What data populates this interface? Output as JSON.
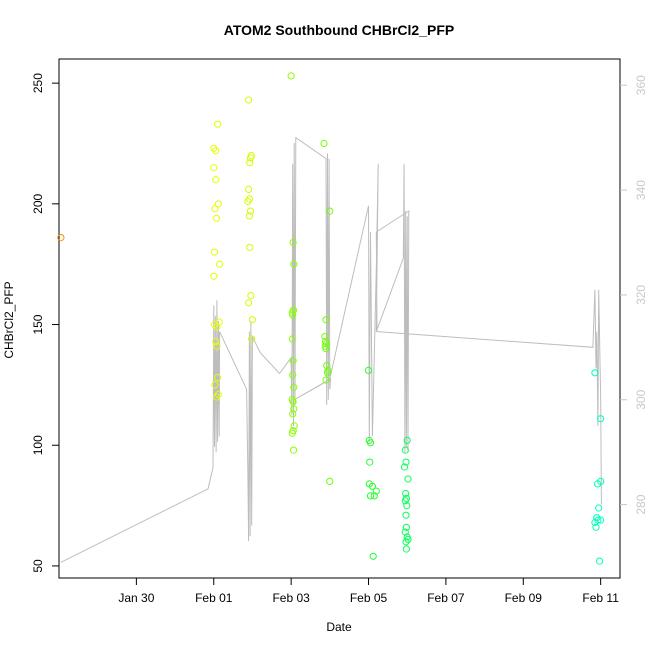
{
  "chart_data": {
    "type": "scatter",
    "title": "ATOM2 Southbound CHBrCl2_PFP",
    "xlabel": "Date",
    "ylabel": "CHBrCl2_PFP",
    "x_unit": "days since Jan 29 00:00",
    "xlim": [
      -1.0,
      13.5
    ],
    "ylim": [
      45,
      260
    ],
    "x_ticks": [
      {
        "value": 1,
        "label": "Jan 30"
      },
      {
        "value": 3,
        "label": "Feb 01"
      },
      {
        "value": 5,
        "label": "Feb 03"
      },
      {
        "value": 7,
        "label": "Feb 05"
      },
      {
        "value": 9,
        "label": "Feb 07"
      },
      {
        "value": 11,
        "label": "Feb 09"
      },
      {
        "value": 13,
        "label": "Feb 11"
      }
    ],
    "y_ticks": [
      50,
      100,
      150,
      200,
      250
    ],
    "y2_ticks": [
      280,
      300,
      320,
      340,
      360
    ],
    "y2lim": [
      266,
      365
    ],
    "line_color": "#bdbdbd",
    "axis_color": "#000000",
    "y2_color": "#c8c8c8",
    "points": [
      {
        "x": -0.95,
        "y": 186,
        "color": "#ff8c00"
      },
      {
        "x": 3.0,
        "y": 170
      },
      {
        "x": 3.02,
        "y": 180
      },
      {
        "x": 3.0,
        "y": 223
      },
      {
        "x": 3.05,
        "y": 222
      },
      {
        "x": 3.0,
        "y": 215
      },
      {
        "x": 3.05,
        "y": 210
      },
      {
        "x": 3.1,
        "y": 233
      },
      {
        "x": 3.03,
        "y": 198
      },
      {
        "x": 3.12,
        "y": 200
      },
      {
        "x": 3.07,
        "y": 194
      },
      {
        "x": 3.15,
        "y": 175
      },
      {
        "x": 3.02,
        "y": 150
      },
      {
        "x": 3.08,
        "y": 149
      },
      {
        "x": 3.14,
        "y": 151
      },
      {
        "x": 3.05,
        "y": 143
      },
      {
        "x": 3.08,
        "y": 141
      },
      {
        "x": 3.1,
        "y": 128
      },
      {
        "x": 3.03,
        "y": 125
      },
      {
        "x": 3.12,
        "y": 121
      },
      {
        "x": 3.07,
        "y": 120
      },
      {
        "x": 3.9,
        "y": 243
      },
      {
        "x": 3.95,
        "y": 219
      },
      {
        "x": 3.97,
        "y": 220
      },
      {
        "x": 3.93,
        "y": 217
      },
      {
        "x": 3.9,
        "y": 206
      },
      {
        "x": 3.88,
        "y": 201
      },
      {
        "x": 3.92,
        "y": 202
      },
      {
        "x": 3.95,
        "y": 197
      },
      {
        "x": 3.92,
        "y": 195
      },
      {
        "x": 3.93,
        "y": 182
      },
      {
        "x": 3.96,
        "y": 162
      },
      {
        "x": 3.9,
        "y": 159
      },
      {
        "x": 4.0,
        "y": 152
      },
      {
        "x": 3.98,
        "y": 144
      },
      {
        "x": 5.0,
        "y": 253
      },
      {
        "x": 5.05,
        "y": 184
      },
      {
        "x": 5.07,
        "y": 175
      },
      {
        "x": 5.03,
        "y": 155
      },
      {
        "x": 5.04,
        "y": 154
      },
      {
        "x": 5.06,
        "y": 156
      },
      {
        "x": 5.03,
        "y": 144
      },
      {
        "x": 5.05,
        "y": 135
      },
      {
        "x": 5.04,
        "y": 129
      },
      {
        "x": 5.07,
        "y": 124
      },
      {
        "x": 5.03,
        "y": 119
      },
      {
        "x": 5.05,
        "y": 118
      },
      {
        "x": 5.07,
        "y": 115
      },
      {
        "x": 5.04,
        "y": 113
      },
      {
        "x": 5.08,
        "y": 108
      },
      {
        "x": 5.05,
        "y": 106
      },
      {
        "x": 5.03,
        "y": 105
      },
      {
        "x": 5.06,
        "y": 98
      },
      {
        "x": 5.85,
        "y": 225
      },
      {
        "x": 6.0,
        "y": 197
      },
      {
        "x": 5.9,
        "y": 152
      },
      {
        "x": 5.87,
        "y": 145
      },
      {
        "x": 5.89,
        "y": 143
      },
      {
        "x": 5.91,
        "y": 142
      },
      {
        "x": 5.88,
        "y": 141
      },
      {
        "x": 5.9,
        "y": 140
      },
      {
        "x": 5.92,
        "y": 133
      },
      {
        "x": 5.94,
        "y": 130
      },
      {
        "x": 5.9,
        "y": 127
      },
      {
        "x": 5.95,
        "y": 131
      },
      {
        "x": 6.0,
        "y": 85
      },
      {
        "x": 7.0,
        "y": 131
      },
      {
        "x": 7.02,
        "y": 102
      },
      {
        "x": 7.05,
        "y": 101
      },
      {
        "x": 7.03,
        "y": 93
      },
      {
        "x": 7.02,
        "y": 84
      },
      {
        "x": 7.1,
        "y": 83
      },
      {
        "x": 7.2,
        "y": 81
      },
      {
        "x": 7.15,
        "y": 79
      },
      {
        "x": 7.05,
        "y": 79
      },
      {
        "x": 7.12,
        "y": 54
      },
      {
        "x": 8.0,
        "y": 102
      },
      {
        "x": 7.95,
        "y": 98
      },
      {
        "x": 7.97,
        "y": 93
      },
      {
        "x": 7.93,
        "y": 91
      },
      {
        "x": 8.02,
        "y": 86
      },
      {
        "x": 7.96,
        "y": 80
      },
      {
        "x": 7.98,
        "y": 78
      },
      {
        "x": 7.95,
        "y": 77
      },
      {
        "x": 7.99,
        "y": 75
      },
      {
        "x": 7.97,
        "y": 71
      },
      {
        "x": 7.98,
        "y": 66
      },
      {
        "x": 7.95,
        "y": 64
      },
      {
        "x": 8.0,
        "y": 62
      },
      {
        "x": 8.02,
        "y": 61
      },
      {
        "x": 7.97,
        "y": 60
      },
      {
        "x": 7.98,
        "y": 57
      },
      {
        "x": 12.85,
        "y": 130
      },
      {
        "x": 13.0,
        "y": 111
      },
      {
        "x": 13.0,
        "y": 85
      },
      {
        "x": 12.92,
        "y": 84
      },
      {
        "x": 12.95,
        "y": 74
      },
      {
        "x": 12.9,
        "y": 70
      },
      {
        "x": 12.93,
        "y": 69
      },
      {
        "x": 13.0,
        "y": 69
      },
      {
        "x": 12.85,
        "y": 68
      },
      {
        "x": 12.88,
        "y": 66
      },
      {
        "x": 12.97,
        "y": 52
      }
    ],
    "altitude_line": [
      [
        -0.95,
        269
      ],
      [
        2.85,
        283
      ],
      [
        2.98,
        287
      ],
      [
        3.0,
        318
      ],
      [
        3.02,
        291
      ],
      [
        3.04,
        316
      ],
      [
        3.06,
        290
      ],
      [
        3.08,
        319
      ],
      [
        3.1,
        292
      ],
      [
        3.12,
        315
      ],
      [
        3.14,
        293
      ],
      [
        3.15,
        313
      ],
      [
        3.85,
        302
      ],
      [
        3.88,
        287
      ],
      [
        3.9,
        273
      ],
      [
        3.92,
        313
      ],
      [
        3.94,
        274
      ],
      [
        3.96,
        315
      ],
      [
        3.98,
        276
      ],
      [
        4.0,
        312
      ],
      [
        4.2,
        309
      ],
      [
        4.7,
        305
      ],
      [
        5.0,
        308
      ],
      [
        5.02,
        297
      ],
      [
        5.04,
        345
      ],
      [
        5.06,
        295
      ],
      [
        5.08,
        349
      ],
      [
        5.1,
        299
      ],
      [
        5.12,
        350
      ],
      [
        5.9,
        346
      ],
      [
        5.92,
        299
      ],
      [
        5.94,
        347
      ],
      [
        5.96,
        300
      ],
      [
        5.98,
        346
      ],
      [
        6.0,
        302
      ],
      [
        6.02,
        304
      ],
      [
        5.08,
        300
      ],
      [
        5.8,
        303
      ],
      [
        6.0,
        304
      ],
      [
        7.0,
        337
      ],
      [
        7.02,
        292
      ],
      [
        7.05,
        332
      ],
      [
        7.1,
        293
      ],
      [
        7.2,
        325
      ],
      [
        7.25,
        345
      ],
      [
        7.2,
        313
      ],
      [
        7.9,
        327
      ],
      [
        7.92,
        345
      ],
      [
        7.94,
        290
      ],
      [
        7.96,
        336
      ],
      [
        7.98,
        291
      ],
      [
        8.0,
        335
      ],
      [
        8.02,
        290
      ],
      [
        8.04,
        336
      ],
      [
        7.2,
        332
      ],
      [
        7.22,
        313
      ],
      [
        12.8,
        310
      ],
      [
        12.85,
        321
      ],
      [
        12.88,
        306
      ],
      [
        12.9,
        313
      ],
      [
        12.93,
        295
      ],
      [
        12.95,
        321
      ],
      [
        13.0,
        300
      ],
      [
        13.02,
        280
      ]
    ]
  }
}
